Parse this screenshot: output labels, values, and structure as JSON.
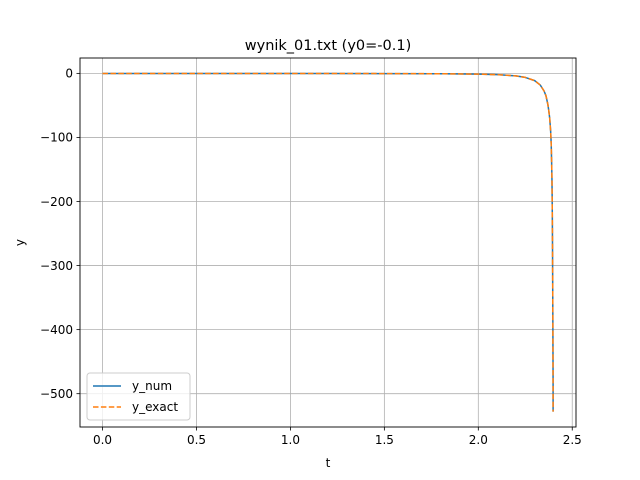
{
  "chart_data": {
    "type": "line",
    "title": "wynik_01.txt  (y0=-0.1)",
    "xlabel": "t",
    "ylabel": "y",
    "xlim": [
      -0.12,
      2.52
    ],
    "ylim": [
      -552,
      24
    ],
    "xticks": [
      0.0,
      0.5,
      1.0,
      1.5,
      2.0,
      2.5
    ],
    "xtick_labels": [
      "0.0",
      "0.5",
      "1.0",
      "1.5",
      "2.0",
      "2.5"
    ],
    "yticks": [
      0,
      -100,
      -200,
      -300,
      -400,
      -500
    ],
    "ytick_labels": [
      "0",
      "−100",
      "−200",
      "−300",
      "−400",
      "−500"
    ],
    "grid": true,
    "legend_position": "lower left",
    "series": [
      {
        "name": "y_num",
        "color": "#1f77b4",
        "style": "solid",
        "x": [
          0.0,
          0.3,
          0.6,
          0.9,
          1.2,
          1.5,
          1.8,
          2.0,
          2.1,
          2.2,
          2.25,
          2.3,
          2.33,
          2.35,
          2.36,
          2.37,
          2.375,
          2.38,
          2.385,
          2.388,
          2.39,
          2.392,
          2.393,
          2.394,
          2.395,
          2.396,
          2.397,
          2.398,
          2.3981
        ],
        "y": [
          -0.1,
          -0.11,
          -0.13,
          -0.16,
          -0.21,
          -0.31,
          -0.55,
          -1.2,
          -2.0,
          -3.9,
          -6.3,
          -11.3,
          -18.3,
          -27.5,
          -34.8,
          -48.1,
          -58.0,
          -70.0,
          -90.0,
          -110.0,
          -135.0,
          -165.0,
          -190.0,
          -225.0,
          -270.0,
          -330.0,
          -400.0,
          -480.0,
          -528.0
        ]
      },
      {
        "name": "y_exact",
        "color": "#ff7f0e",
        "style": "dashed",
        "x": [
          0.0,
          0.3,
          0.6,
          0.9,
          1.2,
          1.5,
          1.8,
          2.0,
          2.1,
          2.2,
          2.25,
          2.3,
          2.33,
          2.35,
          2.36,
          2.37,
          2.375,
          2.38,
          2.385,
          2.388,
          2.39,
          2.392,
          2.393,
          2.394,
          2.395,
          2.396,
          2.397,
          2.398,
          2.3981
        ],
        "y": [
          -0.1,
          -0.11,
          -0.13,
          -0.16,
          -0.21,
          -0.31,
          -0.55,
          -1.2,
          -2.0,
          -3.9,
          -6.3,
          -11.3,
          -18.3,
          -27.5,
          -34.8,
          -48.1,
          -58.0,
          -70.0,
          -90.0,
          -110.0,
          -135.0,
          -165.0,
          -190.0,
          -225.0,
          -270.0,
          -330.0,
          -400.0,
          -480.0,
          -528.0
        ]
      }
    ]
  }
}
